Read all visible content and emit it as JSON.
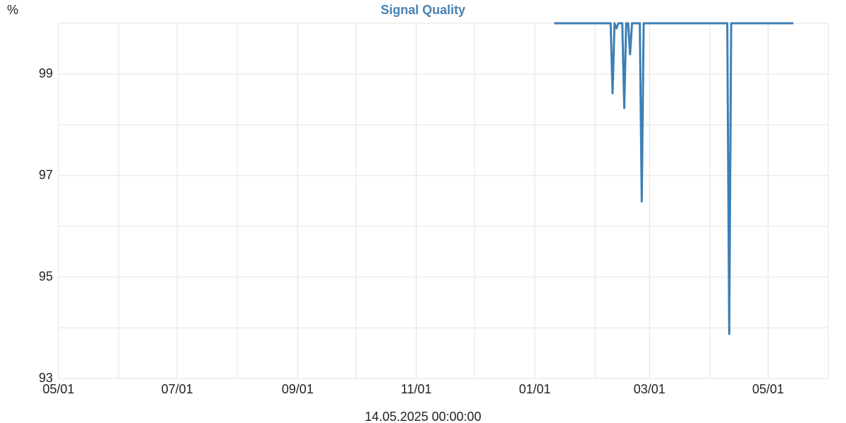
{
  "chart_data": {
    "type": "line",
    "title": "Signal Quality",
    "title_color": "#4682b4",
    "ylabel": "%",
    "xlabel": "14.05.2025 00:00:00",
    "xlim": [
      "2024-05-01",
      "2025-06-01"
    ],
    "ylim": [
      93,
      100
    ],
    "xticks": [
      {
        "value": "2024-05-01",
        "label": "05/01"
      },
      {
        "value": "2024-07-01",
        "label": "07/01"
      },
      {
        "value": "2024-09-01",
        "label": "09/01"
      },
      {
        "value": "2024-11-01",
        "label": "11/01"
      },
      {
        "value": "2025-01-01",
        "label": "01/01"
      },
      {
        "value": "2025-03-01",
        "label": "03/01"
      },
      {
        "value": "2025-05-01",
        "label": "05/01"
      }
    ],
    "xgrid_minor": [
      "2024-06-01",
      "2024-08-01",
      "2024-10-01",
      "2024-12-01",
      "2025-02-01",
      "2025-04-01"
    ],
    "yticks": [
      93,
      95,
      97,
      99
    ],
    "ygrid_minor": [
      94,
      96,
      98,
      100
    ],
    "grid": true,
    "x": [
      "2025-01-11",
      "2025-02-09",
      "2025-02-10",
      "2025-02-11",
      "2025-02-12",
      "2025-02-13",
      "2025-02-15",
      "2025-02-16",
      "2025-02-17",
      "2025-02-18",
      "2025-02-19",
      "2025-02-20",
      "2025-02-24",
      "2025-02-25",
      "2025-02-26",
      "2025-04-10",
      "2025-04-11",
      "2025-04-12",
      "2025-05-14"
    ],
    "series": [
      {
        "name": "Signal Quality",
        "color": "#3d7fb5",
        "values": [
          100,
          100,
          98.62,
          100,
          99.9,
          100,
          100,
          98.33,
          100,
          100,
          99.39,
          100,
          100,
          96.49,
          100,
          100,
          93.88,
          100,
          100
        ]
      }
    ]
  }
}
